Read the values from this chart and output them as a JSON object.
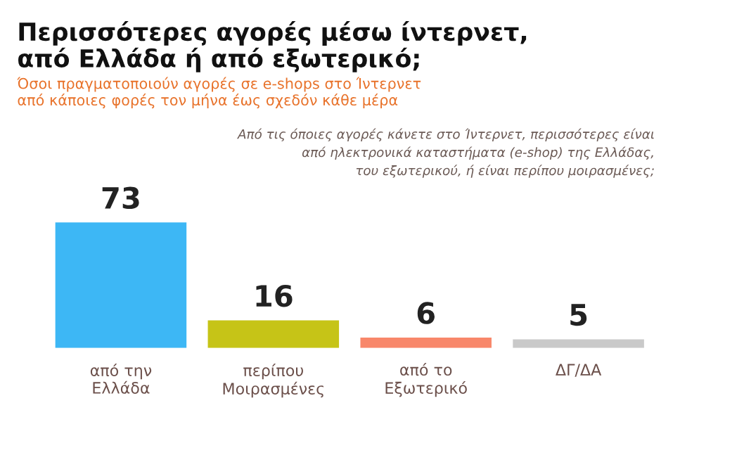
{
  "chart_data": {
    "type": "bar",
    "title": "Περισσότερες αγορές μέσω ίντερνετ,\nαπό Ελλάδα ή από εξωτερικό;",
    "subtitle": "Όσοι πραγματοποιούν αγορές σε e-shops στο Ίντερνετ\nαπό κάποιες φορές τον μήνα έως σχεδόν κάθε μέρα",
    "annotations": [
      "Από τις όποιες αγορές κάνετε στο Ίντερνετ, περισσότερες είναι\nαπό ηλεκτρονικά καταστήματα (e-shop) της Ελλάδας,\nτου εξωτερικού, ή είναι περίπου μοιρασμένες;"
    ],
    "categories": [
      "από την\nΕλλάδα",
      "περίπου\nΜοιρασμένες",
      "από το\nΕξωτερικό",
      "ΔΓ/ΔΑ"
    ],
    "values": [
      73,
      16,
      6,
      5
    ],
    "colors": [
      "#3db7f5",
      "#c6c417",
      "#f8876a",
      "#c9c9c9"
    ],
    "data_labels": true,
    "grid": false,
    "legend": false
  }
}
